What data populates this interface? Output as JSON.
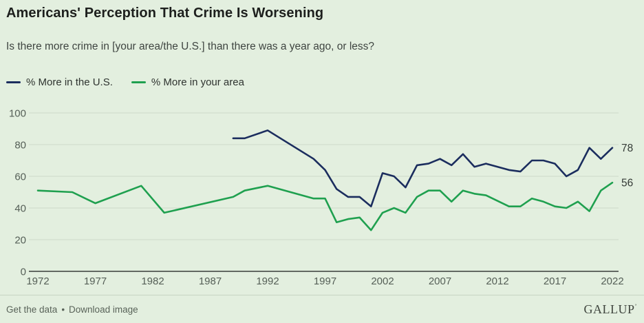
{
  "header": {
    "title": "Americans' Perception That Crime Is Worsening",
    "subtitle": "Is there more crime in [your area/the U.S.] than there was a year ago, or less?"
  },
  "legend": [
    {
      "label": "% More in the U.S.",
      "color": "#1b2d5e"
    },
    {
      "label": "% More in your area",
      "color": "#1fa04f"
    }
  ],
  "chart_data": {
    "type": "line",
    "title": "Americans' Perception That Crime Is Worsening",
    "xlabel": "",
    "ylabel": "",
    "xlim": [
      1972,
      2022
    ],
    "ylim": [
      0,
      100
    ],
    "grid": true,
    "legend_position": "top-left",
    "x_ticks": [
      1972,
      1977,
      1982,
      1987,
      1992,
      1997,
      2002,
      2007,
      2012,
      2017,
      2022
    ],
    "y_ticks": [
      0,
      20,
      40,
      60,
      80,
      100
    ],
    "series": [
      {
        "name": "% More in the U.S.",
        "color": "#1b2d5e",
        "end_label": "78",
        "points": [
          [
            1989,
            84
          ],
          [
            1990,
            84
          ],
          [
            1992,
            89
          ],
          [
            1996,
            71
          ],
          [
            1997,
            64
          ],
          [
            1998,
            52
          ],
          [
            1999,
            47
          ],
          [
            2000,
            47
          ],
          [
            2001,
            41
          ],
          [
            2002,
            62
          ],
          [
            2003,
            60
          ],
          [
            2004,
            53
          ],
          [
            2005,
            67
          ],
          [
            2006,
            68
          ],
          [
            2007,
            71
          ],
          [
            2008,
            67
          ],
          [
            2009,
            74
          ],
          [
            2010,
            66
          ],
          [
            2011,
            68
          ],
          [
            2013,
            64
          ],
          [
            2014,
            63
          ],
          [
            2015,
            70
          ],
          [
            2016,
            70
          ],
          [
            2017,
            68
          ],
          [
            2018,
            60
          ],
          [
            2019,
            64
          ],
          [
            2020,
            78
          ],
          [
            2021,
            71
          ],
          [
            2022,
            78
          ]
        ]
      },
      {
        "name": "% More in your area",
        "color": "#1fa04f",
        "end_label": "56",
        "points": [
          [
            1972,
            51
          ],
          [
            1975,
            50
          ],
          [
            1977,
            43
          ],
          [
            1981,
            54
          ],
          [
            1983,
            37
          ],
          [
            1989,
            47
          ],
          [
            1990,
            51
          ],
          [
            1992,
            54
          ],
          [
            1996,
            46
          ],
          [
            1997,
            46
          ],
          [
            1998,
            31
          ],
          [
            1999,
            33
          ],
          [
            2000,
            34
          ],
          [
            2001,
            26
          ],
          [
            2002,
            37
          ],
          [
            2003,
            40
          ],
          [
            2004,
            37
          ],
          [
            2005,
            47
          ],
          [
            2006,
            51
          ],
          [
            2007,
            51
          ],
          [
            2008,
            44
          ],
          [
            2009,
            51
          ],
          [
            2010,
            49
          ],
          [
            2011,
            48
          ],
          [
            2013,
            41
          ],
          [
            2014,
            41
          ],
          [
            2015,
            46
          ],
          [
            2016,
            44
          ],
          [
            2017,
            41
          ],
          [
            2018,
            40
          ],
          [
            2019,
            44
          ],
          [
            2020,
            38
          ],
          [
            2021,
            51
          ],
          [
            2022,
            56
          ]
        ]
      }
    ],
    "colors": {
      "background": "#e3efdf",
      "gridline": "#ccd8c8",
      "axis": "#383c38",
      "tick_text": "#555f57",
      "end_label_text": "#343a36"
    }
  },
  "footer": {
    "links": [
      "Get the data",
      "Download image"
    ],
    "separator": "•",
    "brand": "GALLUP",
    "brand_mark": "’"
  }
}
